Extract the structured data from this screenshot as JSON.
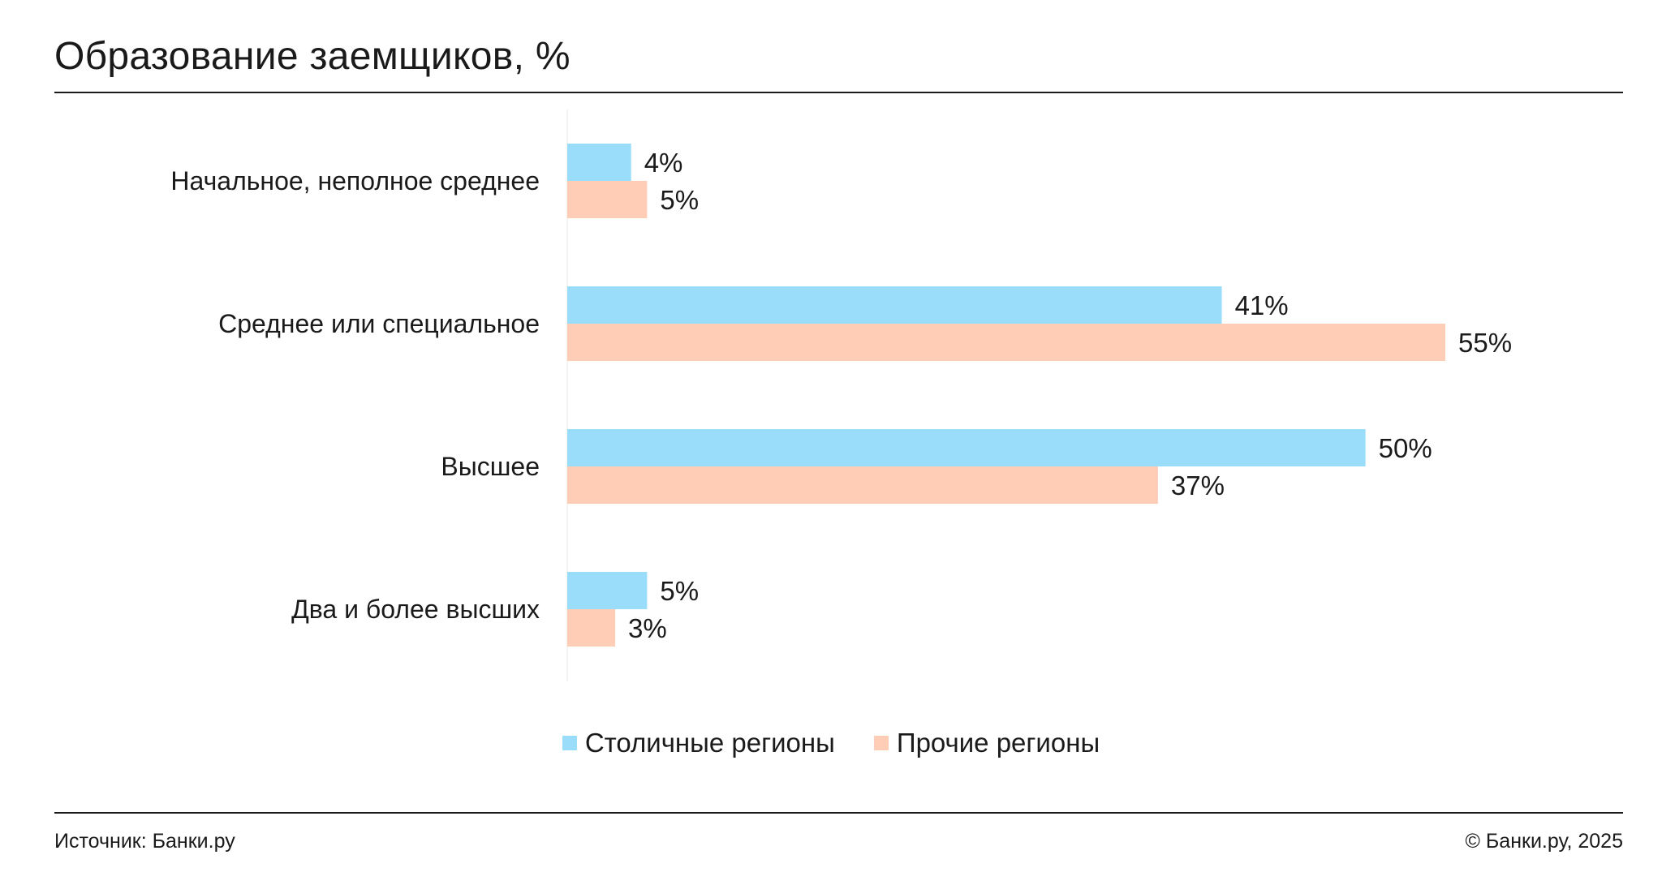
{
  "title": "Образование заемщиков, %",
  "footer": {
    "source": "Источник: Банки.ру",
    "copyright": "© Банки.ру, 2025"
  },
  "colors": {
    "capital": "#99DDFB",
    "other": "#FFCCB6"
  },
  "chart_data": {
    "type": "bar",
    "orientation": "horizontal",
    "title": "Образование заемщиков, %",
    "categories": [
      "Начальное, неполное среднее",
      "Среднее или специальное",
      "Высшее",
      "Два и более высших"
    ],
    "series": [
      {
        "name": "Столичные регионы",
        "color": "#99DDFB",
        "values": [
          4,
          41,
          50,
          5
        ],
        "labels": [
          "4%",
          "41%",
          "50%",
          "5%"
        ]
      },
      {
        "name": "Прочие регионы",
        "color": "#FFCCB6",
        "values": [
          5,
          55,
          37,
          3
        ],
        "labels": [
          "5%",
          "55%",
          "37%",
          "3%"
        ]
      }
    ],
    "xlim": [
      0,
      60
    ],
    "legend_position": "bottom-center",
    "grid": false
  }
}
